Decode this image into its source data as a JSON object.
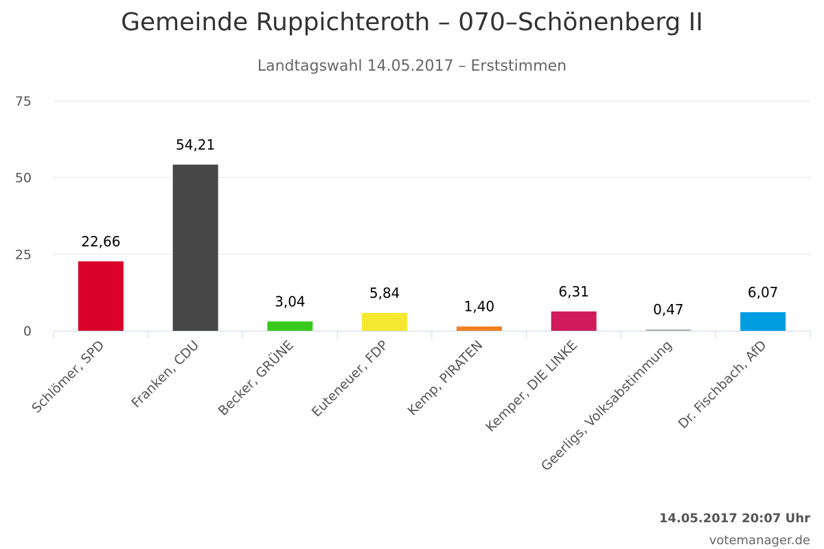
{
  "chart_data": {
    "type": "bar",
    "title": "Gemeinde Ruppichteroth – 070–Schönenberg II",
    "subtitle": "Landtagswahl 14.05.2017 – Erststimmen",
    "categories": [
      "Schlömer, SPD",
      "Franken, CDU",
      "Becker, GRÜNE",
      "Euteneuer, FDP",
      "Kemp, PIRATEN",
      "Kemper, DIE LINKE",
      "Geerligs, Volksabstimmung",
      "Dr. Fischbach, AfD"
    ],
    "values": [
      22.66,
      54.21,
      3.04,
      5.84,
      1.4,
      6.31,
      0.47,
      6.07
    ],
    "data_labels": [
      "22,66",
      "54,21",
      "3,04",
      "5,84",
      "1,40",
      "6,31",
      "0,47",
      "6,07"
    ],
    "colors": [
      "#d9002a",
      "#474747",
      "#38c91c",
      "#f5e830",
      "#f5801f",
      "#d01b5b",
      "#b4b4b4",
      "#009ee0"
    ],
    "ylim": [
      0,
      75
    ],
    "yticks": [
      0,
      25,
      50,
      75
    ],
    "grid": true,
    "legend": "none",
    "xlabel": "",
    "ylabel": ""
  },
  "footer": {
    "timestamp": "14.05.2017 20:07 Uhr",
    "credits": "votemanager.de"
  },
  "colors": {
    "grid": "#e6e6e6",
    "axis": "#ccd6eb",
    "text": "#333333"
  }
}
